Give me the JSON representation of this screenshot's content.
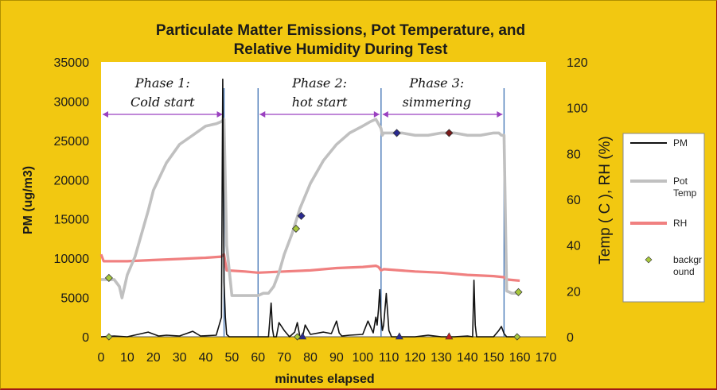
{
  "chart_data": {
    "type": "line",
    "title_lines": [
      "Particulate Matter Emissions, Pot Temperature, and",
      "Relative Humidity During Test"
    ],
    "xlabel": "minutes elapsed",
    "ylabel_left": "PM (ug/m3)",
    "ylabel_right": "Temp ( C ), RH (%)",
    "xlim": [
      0,
      170
    ],
    "ylim_left": [
      0,
      35000
    ],
    "ylim_right": [
      0,
      120
    ],
    "x_ticks": [
      0,
      10,
      20,
      30,
      40,
      50,
      60,
      70,
      80,
      90,
      100,
      110,
      120,
      130,
      140,
      150,
      160,
      170
    ],
    "y_left_ticks": [
      0,
      5000,
      10000,
      15000,
      20000,
      25000,
      30000,
      35000
    ],
    "y_right_ticks": [
      0,
      20,
      40,
      60,
      80,
      100,
      120
    ],
    "grid": false,
    "legend_position": "right",
    "phases": [
      {
        "label_line1": "Phase 1:",
        "label_line2": "Cold start",
        "start": 0,
        "end": 47
      },
      {
        "label_line1": "Phase 2:",
        "label_line2": "hot start",
        "start": 60,
        "end": 107
      },
      {
        "label_line1": "Phase 3:",
        "label_line2": "simmering",
        "start": 107,
        "end": 154
      }
    ],
    "phase_boundaries": [
      47,
      60,
      107,
      154
    ],
    "series": [
      {
        "name": "PM",
        "axis": "left",
        "color": "#111111",
        "x": [
          0,
          5,
          10,
          18,
          22,
          25,
          30,
          35,
          38,
          44,
          46,
          46.5,
          47,
          47.5,
          48,
          49,
          50,
          55,
          60,
          64,
          65,
          65.5,
          66,
          67,
          68,
          70,
          72,
          74,
          75,
          76,
          77,
          78,
          80,
          85,
          88,
          90,
          91,
          92,
          95,
          100,
          102,
          104,
          105,
          105.5,
          106,
          106.5,
          107,
          107.5,
          108,
          109,
          110,
          111,
          115,
          120,
          125,
          130,
          135,
          140,
          142,
          142.5,
          143,
          143.5,
          144,
          146,
          150,
          152,
          153,
          154,
          155,
          160
        ],
        "values": [
          0,
          100,
          0,
          600,
          100,
          200,
          100,
          700,
          100,
          200,
          2500,
          32800,
          7000,
          2500,
          300,
          0,
          0,
          0,
          0,
          0,
          4300,
          1000,
          0,
          0,
          1800,
          800,
          0,
          600,
          1800,
          0,
          0,
          1500,
          300,
          600,
          400,
          2000,
          500,
          100,
          200,
          300,
          2000,
          500,
          2500,
          1500,
          3500,
          6000,
          2500,
          800,
          1500,
          5500,
          800,
          0,
          0,
          0,
          200,
          0,
          0,
          100,
          0,
          7200,
          1500,
          0,
          0,
          0,
          0,
          800,
          1300,
          400,
          0,
          0
        ]
      },
      {
        "name": "Pot Temp",
        "axis": "right",
        "color": "#c0c0c0",
        "x": [
          0,
          5,
          7,
          8,
          9,
          10,
          13,
          18,
          20,
          25,
          30,
          35,
          40,
          44,
          46,
          47,
          48,
          50,
          55,
          60,
          62,
          64,
          66,
          68,
          70,
          73,
          76,
          80,
          85,
          90,
          95,
          100,
          103,
          105,
          106,
          107,
          107.5,
          108,
          110,
          115,
          120,
          125,
          130,
          135,
          140,
          145,
          150,
          152,
          153,
          154,
          155,
          157,
          160
        ],
        "values": [
          25,
          25,
          22,
          17,
          22,
          27,
          35,
          55,
          64,
          76,
          84,
          88,
          92,
          93,
          94,
          95,
          40,
          18,
          18,
          18,
          19,
          19,
          22,
          28,
          36,
          45,
          56,
          67,
          77,
          84,
          89,
          92,
          94,
          95,
          93,
          91,
          88,
          89,
          89,
          89,
          88,
          88,
          89,
          89,
          88,
          88,
          89,
          89,
          88,
          88,
          20,
          19,
          19
        ]
      },
      {
        "name": "RH",
        "axis": "right",
        "color": "#f08080",
        "x": [
          0,
          1,
          10,
          20,
          30,
          40,
          46,
          47,
          48,
          55,
          60,
          70,
          80,
          90,
          100,
          105,
          106,
          107,
          108,
          120,
          130,
          140,
          150,
          154,
          155,
          160
        ],
        "values": [
          36,
          33,
          33,
          33.5,
          34,
          34.5,
          35,
          36,
          29,
          28.5,
          28,
          28.5,
          29,
          30,
          30.5,
          31,
          30.5,
          29,
          29.5,
          28.5,
          28,
          27,
          26.5,
          26,
          25,
          24.5
        ]
      },
      {
        "name": "background",
        "axis": "right",
        "type": "scatter",
        "color": "#a8c83c",
        "points": [
          {
            "x": 3,
            "y": 25.7,
            "fill": "#a8c83c"
          },
          {
            "x": 74.5,
            "y": 47.2,
            "fill": "#a8c83c"
          },
          {
            "x": 76.5,
            "y": 52.8,
            "fill": "#2a2a90"
          },
          {
            "x": 113,
            "y": 89,
            "fill": "#2a2a90"
          },
          {
            "x": 133,
            "y": 89,
            "fill": "#7a1a1a"
          },
          {
            "x": 159.5,
            "y": 19.5,
            "fill": "#a8c83c"
          }
        ],
        "baseline_markers": [
          {
            "x": 3,
            "shape": "diamond",
            "fill": "#a8c83c"
          },
          {
            "x": 75,
            "shape": "diamond",
            "fill": "#a8c83c"
          },
          {
            "x": 77,
            "shape": "triangle",
            "fill": "#2a2a90"
          },
          {
            "x": 114,
            "shape": "triangle",
            "fill": "#2a2a90"
          },
          {
            "x": 133,
            "shape": "triangle",
            "fill": "#c02020"
          },
          {
            "x": 159,
            "shape": "diamond",
            "fill": "#a8c83c"
          }
        ]
      }
    ],
    "legend": [
      {
        "label_lines": [
          "PM"
        ],
        "color": "#111111",
        "kind": "line"
      },
      {
        "label_lines": [
          "Pot",
          "Temp"
        ],
        "color": "#c0c0c0",
        "kind": "line"
      },
      {
        "label_lines": [
          "RH"
        ],
        "color": "#f08080",
        "kind": "line"
      },
      {
        "label_lines": [
          "backgr",
          "ound"
        ],
        "color": "#a8c83c",
        "kind": "marker"
      }
    ],
    "colors": {
      "frame_background": "#f2c811",
      "plot_background": "#ffffff",
      "phase_arrow": "#9a40c0",
      "phase_boundary_line": "#4a7ab8"
    }
  }
}
